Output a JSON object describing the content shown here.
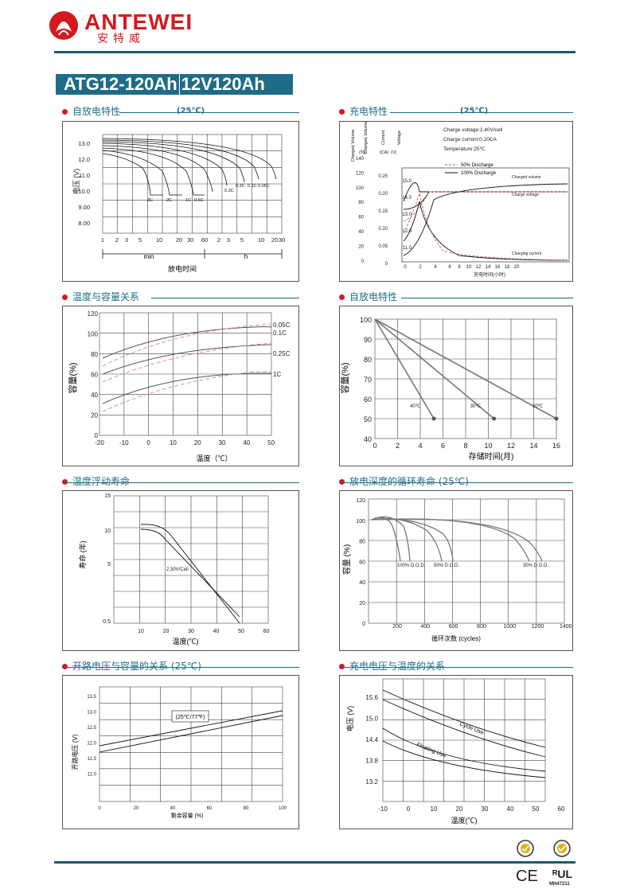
{
  "header": {
    "brand_name": "ANTEWEI",
    "brand_cn": "安特威",
    "model_code": "ATG12-120Ah",
    "model_spec": "12V120Ah"
  },
  "sections": {
    "s1": {
      "title": "自放电特性",
      "temp": "(25℃)"
    },
    "s2": {
      "title": "充电特性",
      "temp": "(25℃)"
    },
    "s3": {
      "title": "温度与容量关系"
    },
    "s4": {
      "title": "自放电特性"
    },
    "s5": {
      "title": "温度浮动寿命"
    },
    "s6": {
      "title": "放电深度的循环寿命",
      "temp": "(25℃)"
    },
    "s7": {
      "title": "开路电压与容量的关系",
      "temp": "(25℃)"
    },
    "s8": {
      "title": "充电电压与温度的关系"
    }
  },
  "chart_data": [
    {
      "id": "discharge_curves",
      "type": "line",
      "ylabel": "电压 (V)",
      "xlabel": "放电时间",
      "y_ticks": [
        "13.0",
        "12.0",
        "11.0",
        "10.0",
        "9.00",
        "8.00"
      ],
      "x_ticks": [
        "1",
        "2",
        "3",
        "5",
        "10",
        "20",
        "30",
        "60",
        "2",
        "3",
        "5",
        "10",
        "20",
        "30"
      ],
      "unit_min": "min",
      "unit_h": "h",
      "series_labels": [
        "3C",
        "2C",
        "1C",
        "0.6C",
        "0.3C",
        "0.2C",
        "0.1C",
        "0.05C"
      ]
    },
    {
      "id": "charge_characteristics",
      "type": "line",
      "axis_titles": [
        "Charged Volume",
        "Current",
        "Voltage"
      ],
      "axis_units": [
        "(%)",
        "(CA)",
        "(V)"
      ],
      "y_percent_ticks": [
        "140",
        "120",
        "100",
        "80",
        "60",
        "40",
        "20",
        "0"
      ],
      "y_ca_ticks": [
        "0.25",
        "0.20",
        "0.15",
        "0.10",
        "0.05",
        "0"
      ],
      "y_v_ticks": [
        "15.0",
        "14.0",
        "13.0",
        "12.0",
        "11.0"
      ],
      "x_ticks": [
        "0",
        "2",
        "4",
        "6",
        "8",
        "10",
        "12",
        "14",
        "16",
        "18",
        "20"
      ],
      "xlabel": "充电时间(小时)",
      "notes": [
        "Charge voltage:2.40V/cell",
        "Charge current:0.20CA",
        "Temperature:25℃"
      ],
      "legend": [
        "50% Discharge",
        "100% Discharge"
      ],
      "curve_labels": [
        "Charged volume",
        "Charge voltage",
        "Charging current"
      ]
    },
    {
      "id": "temp_capacity",
      "type": "line",
      "ylabel": "容量(%)",
      "xlabel": "温度（℃）",
      "y_ticks": [
        "120",
        "100",
        "80",
        "60",
        "40",
        "20",
        "0"
      ],
      "x_ticks": [
        "-20",
        "-10",
        "0",
        "10",
        "20",
        "30",
        "40",
        "50"
      ],
      "series_labels": [
        "0.05C",
        "0.1C",
        "0.25C",
        "1C"
      ]
    },
    {
      "id": "self_discharge",
      "type": "line",
      "ylabel": "容量(%)",
      "xlabel": "存储时间(月)",
      "y_ticks": [
        "100",
        "90",
        "80",
        "70",
        "60",
        "50",
        "40"
      ],
      "x_ticks": [
        "0",
        "2",
        "4",
        "6",
        "8",
        "10",
        "12",
        "14",
        "16"
      ],
      "series": [
        {
          "name": "40℃",
          "x": [
            0,
            5.2
          ],
          "y": [
            100,
            50
          ]
        },
        {
          "name": "30℃",
          "x": [
            0,
            10.5
          ],
          "y": [
            100,
            50
          ]
        },
        {
          "name": "20℃",
          "x": [
            0,
            16
          ],
          "y": [
            100,
            50
          ]
        }
      ]
    },
    {
      "id": "float_life",
      "type": "line",
      "ylabel": "寿命 (年)",
      "xlabel": "温度(℃)",
      "y_ticks": [
        "15",
        "10",
        "5",
        "0.5"
      ],
      "x_ticks": [
        "10",
        "20",
        "30",
        "40",
        "50",
        "60"
      ],
      "label": "2.30V/Cell"
    },
    {
      "id": "cycle_life",
      "type": "line",
      "ylabel": "容量 (%)",
      "xlabel": "循环次数 (cycles)",
      "y_ticks": [
        "120",
        "100",
        "80",
        "60",
        "40",
        "20",
        "0"
      ],
      "x_ticks": [
        "200",
        "400",
        "600",
        "800",
        "1000",
        "1200",
        "1400"
      ],
      "series_labels": [
        "100% D.O.D.",
        "50% D.O.D.",
        "30% D.O.D."
      ]
    },
    {
      "id": "ocv_capacity",
      "type": "line",
      "ylabel": "开路电压 (V)",
      "xlabel": "剩余容量 (%)",
      "y_ticks": [
        "13.5",
        "13.0",
        "12.5",
        "12.0",
        "11.5",
        "11.0"
      ],
      "x_ticks": [
        "0",
        "20",
        "40",
        "60",
        "80",
        "100"
      ],
      "label": "(25℃/77℉)"
    },
    {
      "id": "charge_voltage_temp",
      "type": "line",
      "ylabel": "电压 (V)",
      "xlabel": "温度(℃)",
      "y_ticks": [
        "15.6",
        "15.0",
        "14.4",
        "13.8",
        "13.2"
      ],
      "x_ticks": [
        "-10",
        "0",
        "10",
        "20",
        "30",
        "40",
        "50",
        "60"
      ],
      "series_labels": [
        "Cycle Use",
        "Floating Use"
      ]
    }
  ],
  "footer": {
    "cert_mark": "MH47211"
  }
}
